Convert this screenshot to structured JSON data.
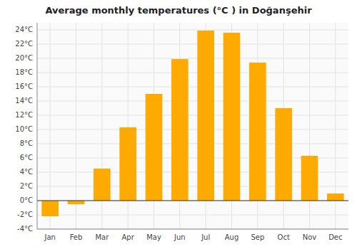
{
  "chart_data": {
    "type": "bar",
    "title": "Average monthly temperatures (°C ) in Doğanşehir",
    "categories": [
      "Jan",
      "Feb",
      "Mar",
      "Apr",
      "May",
      "Jun",
      "Jul",
      "Aug",
      "Sep",
      "Oct",
      "Nov",
      "Dec"
    ],
    "values": [
      -2.2,
      -0.5,
      4.5,
      10.3,
      15.0,
      19.9,
      23.9,
      23.6,
      19.4,
      13.0,
      6.3,
      1.0
    ],
    "color": "#FFAA00",
    "ylim": [
      -4,
      25
    ],
    "yticks": [
      {
        "value": -4,
        "label": "-4°C"
      },
      {
        "value": -2,
        "label": "-2°C"
      },
      {
        "value": 0,
        "label": "0°C"
      },
      {
        "value": 2,
        "label": "2°C"
      },
      {
        "value": 4,
        "label": "4°C"
      },
      {
        "value": 6,
        "label": "6°C"
      },
      {
        "value": 8,
        "label": "8°C"
      },
      {
        "value": 10,
        "label": "10°C"
      },
      {
        "value": 12,
        "label": "12°C"
      },
      {
        "value": 14,
        "label": "14°C"
      },
      {
        "value": 16,
        "label": "16°C"
      },
      {
        "value": 18,
        "label": "18°C"
      },
      {
        "value": 20,
        "label": "20°C"
      },
      {
        "value": 22,
        "label": "22°C"
      },
      {
        "value": 24,
        "label": "24°C"
      }
    ],
    "grid": true
  }
}
